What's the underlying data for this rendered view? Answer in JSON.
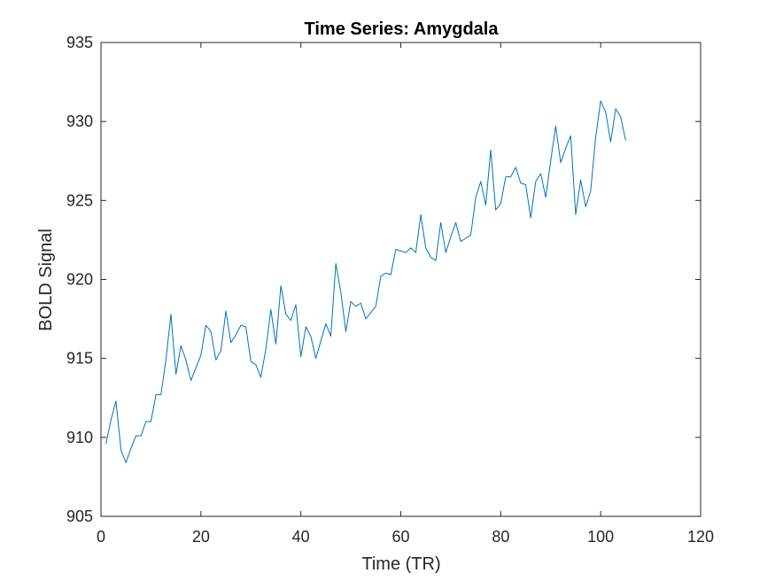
{
  "chart_data": {
    "type": "line",
    "title": "Time Series: Amygdala",
    "xlabel": "Time (TR)",
    "ylabel": "BOLD Signal",
    "xlim": [
      0,
      120
    ],
    "ylim": [
      905,
      935
    ],
    "xticks": [
      0,
      20,
      40,
      60,
      80,
      100,
      120
    ],
    "yticks": [
      905,
      910,
      915,
      920,
      925,
      930,
      935
    ],
    "grid": false,
    "legend": "none",
    "series": [
      {
        "color": "#0072BD",
        "x": [
          1,
          2,
          3,
          4,
          5,
          6,
          7,
          8,
          9,
          10,
          11,
          12,
          13,
          14,
          15,
          16,
          17,
          18,
          19,
          20,
          21,
          22,
          23,
          24,
          25,
          26,
          27,
          28,
          29,
          30,
          31,
          32,
          33,
          34,
          35,
          36,
          37,
          38,
          39,
          40,
          41,
          42,
          43,
          44,
          45,
          46,
          47,
          48,
          49,
          50,
          51,
          52,
          53,
          54,
          55,
          56,
          57,
          58,
          59,
          60,
          61,
          62,
          63,
          64,
          65,
          66,
          67,
          68,
          69,
          70,
          71,
          72,
          73,
          74,
          75,
          76,
          77,
          78,
          79,
          80,
          81,
          82,
          83,
          84,
          85,
          86,
          87,
          88,
          89,
          90,
          91,
          92,
          93,
          94,
          95,
          96,
          97,
          98,
          99,
          100,
          101,
          102,
          103,
          104,
          105
        ],
        "y": [
          909.6,
          911.1,
          912.3,
          909.2,
          908.4,
          909.3,
          910.1,
          910.1,
          911.0,
          911.0,
          912.7,
          912.7,
          914.9,
          917.8,
          914.0,
          915.8,
          914.9,
          913.6,
          914.4,
          915.2,
          917.1,
          916.7,
          914.9,
          915.5,
          918.0,
          916.0,
          916.5,
          917.1,
          917.0,
          914.8,
          914.6,
          913.8,
          915.6,
          918.1,
          915.9,
          919.6,
          917.8,
          917.4,
          918.4,
          915.1,
          917.0,
          916.4,
          915.0,
          916.1,
          917.2,
          916.4,
          921.0,
          919.2,
          916.7,
          918.6,
          918.3,
          918.5,
          917.5,
          917.9,
          918.3,
          920.2,
          920.4,
          920.3,
          921.9,
          921.8,
          921.7,
          922.0,
          921.7,
          924.1,
          922.0,
          921.4,
          921.2,
          923.6,
          921.7,
          922.7,
          923.6,
          922.4,
          922.6,
          922.8,
          925.2,
          926.2,
          924.7,
          928.2,
          924.4,
          924.8,
          926.5,
          926.5,
          927.1,
          926.1,
          926.0,
          923.9,
          926.2,
          926.7,
          925.2,
          927.5,
          929.7,
          927.4,
          928.3,
          929.1,
          924.1,
          926.3,
          924.6,
          925.6,
          929.0,
          931.3,
          930.6,
          928.7,
          930.8,
          930.3,
          928.8
        ]
      }
    ]
  }
}
